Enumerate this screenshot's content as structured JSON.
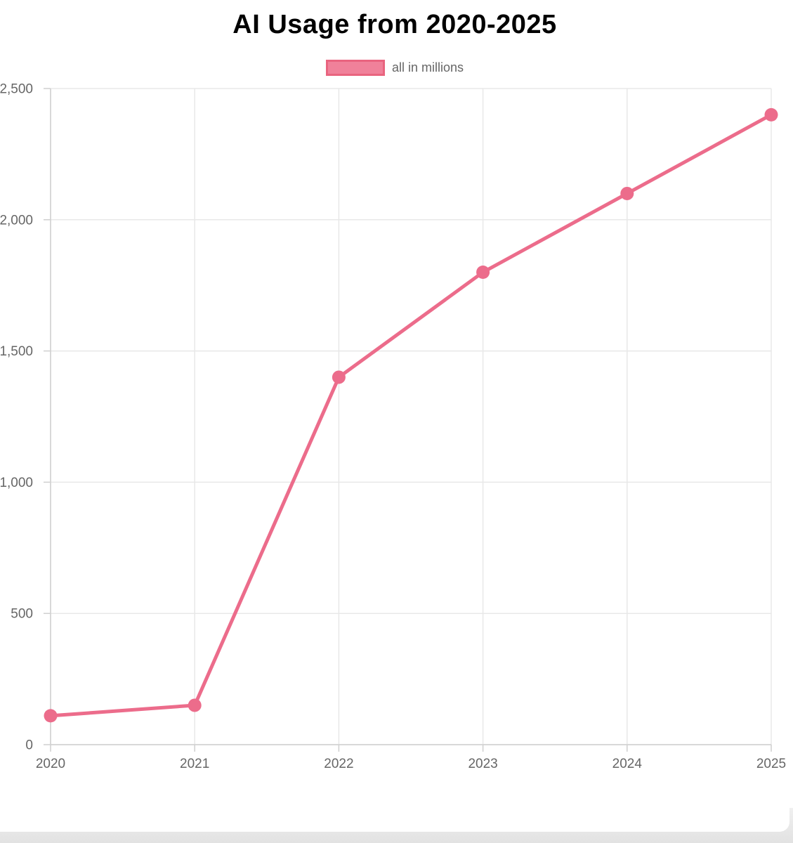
{
  "page": {
    "backdrop_color": "#e8e8e8",
    "card_color": "#ffffff"
  },
  "chart_data": {
    "type": "line",
    "title": "AI Usage from 2020-2025",
    "legend": {
      "label": "all in millions",
      "position": "top"
    },
    "categories": [
      "2020",
      "2021",
      "2022",
      "2023",
      "2024",
      "2025"
    ],
    "series": [
      {
        "name": "all in millions",
        "values": [
          110,
          150,
          1400,
          1800,
          2100,
          2400
        ]
      }
    ],
    "xlabel": "",
    "ylabel": "",
    "ylim": [
      0,
      2500
    ],
    "y_tick_step": 500,
    "y_tick_labels": [
      "0",
      "500",
      "1,000",
      "1,500",
      "2,000",
      "2,500"
    ],
    "grid": true,
    "legend_position": "top",
    "colors": {
      "line": "#ec6c8b",
      "point": "#ec6c8b",
      "legend_fill": "#f0819a",
      "legend_border": "#e9647f",
      "title_text": "#000000",
      "tick_text": "#666666",
      "grid_line": "#e8e8e8",
      "axis_line": "#cfcfcf"
    }
  }
}
